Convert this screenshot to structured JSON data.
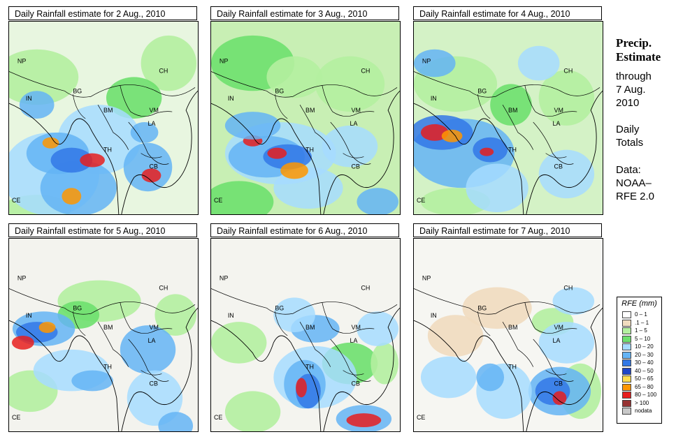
{
  "panels": [
    {
      "title": "Daily Rainfall estimate for  2 Aug., 2010",
      "variant": 0
    },
    {
      "title": "Daily Rainfall estimate for  3 Aug., 2010",
      "variant": 1
    },
    {
      "title": "Daily Rainfall estimate for  4 Aug., 2010",
      "variant": 2
    },
    {
      "title": "Daily Rainfall estimate for  5 Aug., 2010",
      "variant": 3
    },
    {
      "title": "Daily Rainfall estimate for  6 Aug., 2010",
      "variant": 4
    },
    {
      "title": "Daily Rainfall estimate for  7 Aug., 2010",
      "variant": 5
    }
  ],
  "country_labels": [
    "NP",
    "BG",
    "IN",
    "CH",
    "BM",
    "VM",
    "LA",
    "TH",
    "CB",
    "CE"
  ],
  "sidebar": {
    "heading_line1": "Precip.",
    "heading_line2": "Estimate",
    "through": "through",
    "date_line1": "7 Aug.",
    "date_line2": "2010",
    "daily1": "Daily",
    "daily2": "Totals",
    "data1": "Data:",
    "data2": "NOAA–",
    "data3": "RFE 2.0"
  },
  "legend": {
    "title": "RFE (mm)",
    "items": [
      {
        "label": "0 – 1",
        "color": "#ffffff"
      },
      {
        "label": ".1 – 1",
        "color": "#f1dcbf"
      },
      {
        "label": "1 – 5",
        "color": "#b4f0a0"
      },
      {
        "label": "5 – 10",
        "color": "#6ee06e"
      },
      {
        "label": "10 – 20",
        "color": "#a6dcff"
      },
      {
        "label": "20 – 30",
        "color": "#64b4f5"
      },
      {
        "label": "30 – 40",
        "color": "#3278e6"
      },
      {
        "label": "40 – 50",
        "color": "#1e46c8"
      },
      {
        "label": "50 – 65",
        "color": "#ffdc50"
      },
      {
        "label": "65 – 80",
        "color": "#ff9600"
      },
      {
        "label": "80 – 100",
        "color": "#e61e1e"
      },
      {
        "label": "> 100",
        "color": "#963232"
      },
      {
        "label": "nodata",
        "color": "#c8c8c8"
      }
    ]
  }
}
